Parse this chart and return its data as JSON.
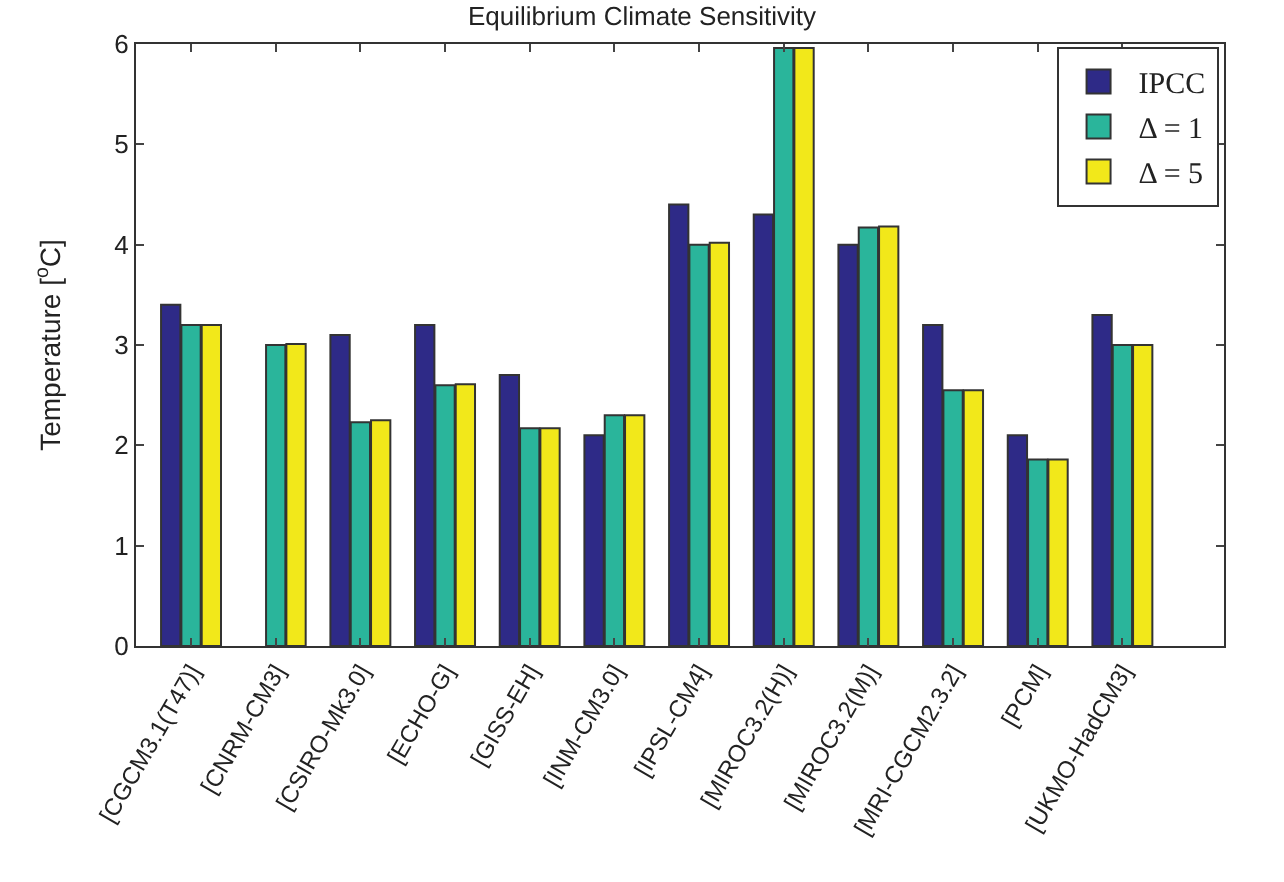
{
  "chart_data": {
    "type": "bar",
    "title": "Equilibrium Climate Sensitivity",
    "ylabel": "Temperature [$^{o}$C]",
    "categories": [
      "[CGCM3.1(T47)]",
      "[CNRM-CM3]",
      "[CSIRO-Mk3.0]",
      "[ECHO-G]",
      "[GISS-EH]",
      "[INM-CM3.0]",
      "[IPSL-CM4]",
      "[MIROC3.2(H)]",
      "[MIROC3.2(M)]",
      "[MRI-CGCM2.3.2]",
      "[PCM]",
      "[UKMO-HadCM3]"
    ],
    "series": [
      {
        "name": "IPCC",
        "color": "#2e2a87",
        "values": [
          3.4,
          null,
          3.1,
          3.2,
          2.7,
          2.1,
          4.4,
          4.3,
          4.0,
          3.2,
          2.1,
          3.3
        ]
      },
      {
        "name": "Δ = 1",
        "color": "#2ab59b",
        "values": [
          3.2,
          3.0,
          2.23,
          2.6,
          2.17,
          2.3,
          4.0,
          5.96,
          4.17,
          2.55,
          1.86,
          3.0
        ]
      },
      {
        "name": "Δ = 5",
        "color": "#f2e81a",
        "values": [
          3.2,
          3.01,
          2.25,
          2.61,
          2.17,
          2.3,
          4.02,
          5.96,
          4.18,
          2.55,
          1.86,
          3.0
        ]
      }
    ],
    "ylim": [
      0,
      6
    ],
    "yticks": [
      0,
      1,
      2,
      3,
      4,
      5,
      6
    ],
    "grid": false,
    "legend": "top right"
  }
}
